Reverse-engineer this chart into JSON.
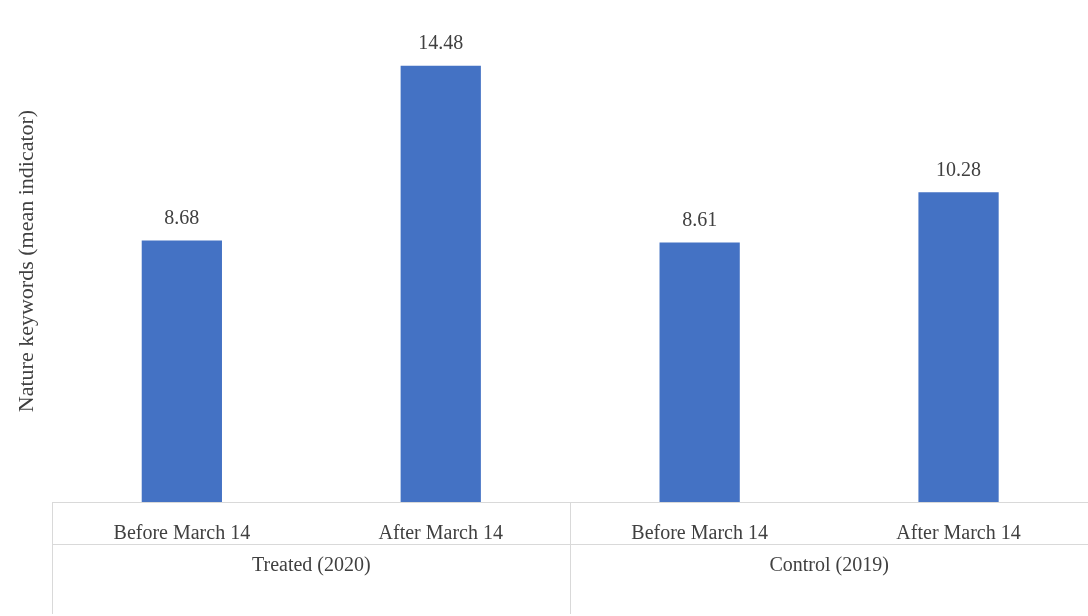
{
  "chart_data": {
    "type": "bar",
    "ylabel": "Nature keywords (mean indicator)",
    "categories": [
      "Before March 14",
      "After March 14",
      "Before March 14",
      "After March 14"
    ],
    "values": [
      8.68,
      14.48,
      8.61,
      10.28
    ],
    "color": "#4472c4",
    "data_labels": true,
    "grid": false,
    "legend": false,
    "annotations": [
      "Treated (2020)",
      "Control (2019)"
    ]
  }
}
